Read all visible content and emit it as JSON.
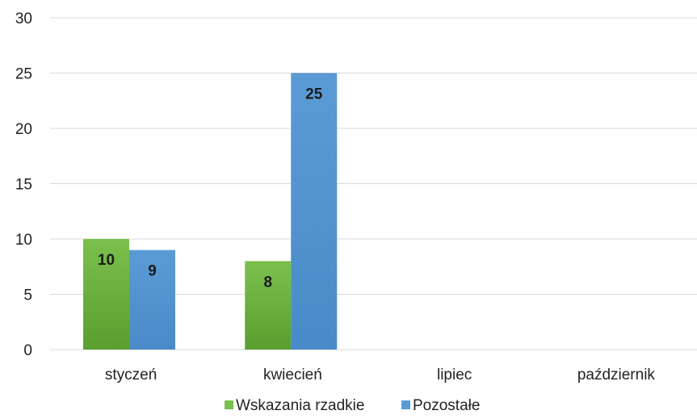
{
  "chart_data": {
    "type": "bar",
    "title": "",
    "xlabel": "",
    "ylabel": "",
    "categories": [
      "styczeń",
      "kwiecień",
      "lipiec",
      "październik"
    ],
    "series": [
      {
        "name": "Wskazania rzadkie",
        "values": [
          10,
          8,
          null,
          null
        ],
        "color_top": "#7bc04d",
        "color_bottom": "#5a9e2f"
      },
      {
        "name": "Pozostałe",
        "values": [
          9,
          25,
          null,
          null
        ],
        "color_top": "#5b9bd5",
        "color_bottom": "#4a8ac8"
      }
    ],
    "ylim": [
      0,
      30
    ],
    "yticks": [
      0,
      5,
      10,
      15,
      20,
      25,
      30
    ],
    "grid": true,
    "legend_position": "bottom",
    "data_labels": true
  }
}
